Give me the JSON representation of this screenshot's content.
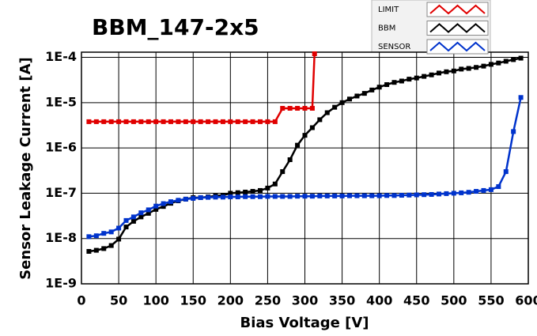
{
  "chart_data": {
    "type": "line",
    "title": "BBM_147-2x5",
    "x_label": "Bias Voltage [V]",
    "y_label": "Sensor Leakage Current [A]",
    "y_log": true,
    "grid": true,
    "legend_position": "top-right",
    "xlim": [
      0,
      600
    ],
    "xticks": [
      0,
      50,
      100,
      150,
      200,
      250,
      300,
      350,
      400,
      450,
      500,
      550,
      600
    ],
    "ylim": [
      1e-09,
      0.00013
    ],
    "yticks": [
      {
        "value": 1e-09,
        "label": "1E-9"
      },
      {
        "value": 1e-08,
        "label": "1E-8"
      },
      {
        "value": 1e-07,
        "label": "1E-7"
      },
      {
        "value": 1e-06,
        "label": "1E-6"
      },
      {
        "value": 1e-05,
        "label": "1E-5"
      },
      {
        "value": 0.0001,
        "label": "1E-4"
      }
    ],
    "series": [
      {
        "name": "LIMIT",
        "color": "#e00000",
        "x": [
          10,
          20,
          30,
          40,
          50,
          60,
          70,
          80,
          90,
          100,
          110,
          120,
          130,
          140,
          150,
          160,
          170,
          180,
          190,
          200,
          210,
          220,
          230,
          240,
          250,
          260,
          270,
          280,
          290,
          300,
          310,
          313
        ],
        "values": [
          3.8e-06,
          3.8e-06,
          3.8e-06,
          3.8e-06,
          3.8e-06,
          3.8e-06,
          3.8e-06,
          3.8e-06,
          3.8e-06,
          3.8e-06,
          3.8e-06,
          3.8e-06,
          3.8e-06,
          3.8e-06,
          3.8e-06,
          3.8e-06,
          3.8e-06,
          3.8e-06,
          3.8e-06,
          3.8e-06,
          3.8e-06,
          3.8e-06,
          3.8e-06,
          3.8e-06,
          3.8e-06,
          3.8e-06,
          7.5e-06,
          7.5e-06,
          7.5e-06,
          7.5e-06,
          7.5e-06,
          0.00012
        ]
      },
      {
        "name": "BBM",
        "color": "#000000",
        "x": [
          10,
          20,
          30,
          40,
          50,
          60,
          70,
          80,
          90,
          100,
          110,
          120,
          130,
          140,
          150,
          160,
          170,
          180,
          190,
          200,
          210,
          220,
          230,
          240,
          250,
          260,
          270,
          280,
          290,
          300,
          310,
          320,
          330,
          340,
          350,
          360,
          370,
          380,
          390,
          400,
          410,
          420,
          430,
          440,
          450,
          460,
          470,
          480,
          490,
          500,
          510,
          520,
          530,
          540,
          550,
          560,
          570,
          580,
          590
        ],
        "values": [
          5.2e-09,
          5.5e-09,
          6e-09,
          7e-09,
          9.7e-09,
          1.8e-08,
          2.4e-08,
          3e-08,
          3.6e-08,
          4.4e-08,
          5.1e-08,
          6e-08,
          6.8e-08,
          7.4e-08,
          8e-08,
          8e-08,
          8.3e-08,
          8.7e-08,
          9e-08,
          1e-07,
          1.03e-07,
          1.06e-07,
          1.1e-07,
          1.15e-07,
          1.3e-07,
          1.6e-07,
          3e-07,
          5.5e-07,
          1.15e-06,
          1.9e-06,
          2.8e-06,
          4.2e-06,
          6e-06,
          7.9e-06,
          1e-05,
          1.2e-05,
          1.4e-05,
          1.6e-05,
          1.9e-05,
          2.2e-05,
          2.5e-05,
          2.8e-05,
          3e-05,
          3.3e-05,
          3.5e-05,
          3.8e-05,
          4.1e-05,
          4.5e-05,
          4.8e-05,
          5e-05,
          5.5e-05,
          5.7e-05,
          6e-05,
          6.4e-05,
          7e-05,
          7.5e-05,
          8.2e-05,
          8.9e-05,
          9.6e-05
        ]
      },
      {
        "name": "SENSOR",
        "color": "#0033cc",
        "x": [
          10,
          20,
          30,
          40,
          50,
          60,
          70,
          80,
          90,
          100,
          110,
          120,
          130,
          140,
          150,
          160,
          170,
          180,
          190,
          200,
          210,
          220,
          230,
          240,
          250,
          260,
          270,
          280,
          290,
          300,
          310,
          320,
          330,
          340,
          350,
          360,
          370,
          380,
          390,
          400,
          410,
          420,
          430,
          440,
          450,
          460,
          470,
          480,
          490,
          500,
          510,
          520,
          530,
          540,
          550,
          560,
          570,
          580,
          590
        ],
        "values": [
          1.1e-08,
          1.15e-08,
          1.3e-08,
          1.4e-08,
          1.7e-08,
          2.5e-08,
          3e-08,
          3.7e-08,
          4.3e-08,
          5.2e-08,
          5.9e-08,
          6.5e-08,
          7e-08,
          7.4e-08,
          7.7e-08,
          8e-08,
          8.1e-08,
          8.2e-08,
          8.2e-08,
          8.3e-08,
          8.3e-08,
          8.4e-08,
          8.4e-08,
          8.4e-08,
          8.5e-08,
          8.5e-08,
          8.5e-08,
          8.5e-08,
          8.6e-08,
          8.6e-08,
          8.6e-08,
          8.7e-08,
          8.7e-08,
          8.7e-08,
          8.7e-08,
          8.8e-08,
          8.8e-08,
          8.8e-08,
          8.8e-08,
          8.8e-08,
          8.9e-08,
          8.9e-08,
          9e-08,
          9.1e-08,
          9.2e-08,
          9.3e-08,
          9.4e-08,
          9.6e-08,
          9.8e-08,
          1e-07,
          1.02e-07,
          1.05e-07,
          1.1e-07,
          1.15e-07,
          1.2e-07,
          1.4e-07,
          3e-07,
          2.3e-06,
          1.3e-05
        ]
      }
    ]
  }
}
